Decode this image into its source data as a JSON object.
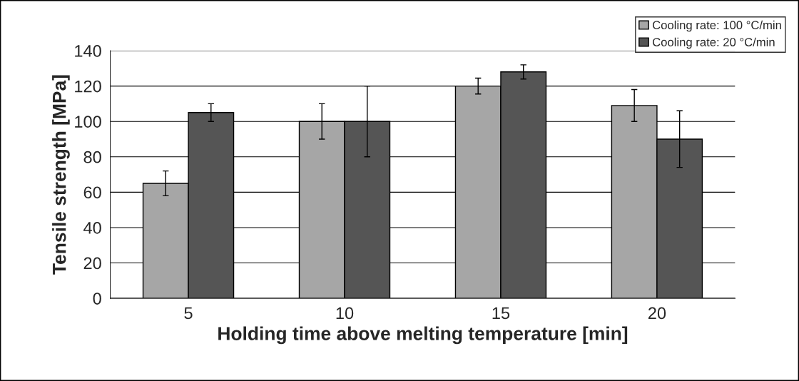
{
  "chart_data": {
    "type": "bar",
    "xlabel": "Holding time above melting temperature [min]",
    "ylabel": "Tensile strength [MPa]",
    "categories": [
      "5",
      "10",
      "15",
      "20"
    ],
    "series": [
      {
        "name": "Cooling rate: 100 °C/min",
        "color": "#a6a6a6",
        "values": [
          65,
          100,
          120,
          109
        ],
        "errors": [
          7,
          10,
          4.5,
          9
        ]
      },
      {
        "name": "Cooling rate: 20 °C/min",
        "color": "#555555",
        "values": [
          105,
          100,
          128,
          90
        ],
        "errors": [
          5,
          20,
          4,
          16
        ]
      }
    ],
    "ylim": [
      0,
      140
    ],
    "yticks": [
      0,
      20,
      40,
      60,
      80,
      100,
      120,
      140
    ],
    "grid": "y",
    "legend": "top right"
  }
}
